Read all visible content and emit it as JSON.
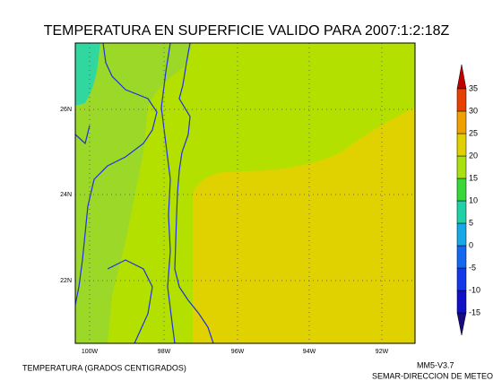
{
  "header": {
    "title": "TEMPERATURA EN SUPERFICIE VALIDO PARA 2007:1:2:18Z"
  },
  "map": {
    "lat_labels": [
      "26N",
      "24N",
      "22N"
    ],
    "lon_labels": [
      "100W",
      "98W",
      "96W",
      "94W",
      "92W"
    ]
  },
  "colorbar": {
    "levels": [
      -15,
      -10,
      -5,
      0,
      5,
      10,
      15,
      20,
      25,
      30,
      35
    ],
    "colors": [
      "#1a0a80",
      "#1010c8",
      "#1238e8",
      "#1468f0",
      "#18a8e8",
      "#20d0a8",
      "#38d838",
      "#a8e010",
      "#e0d000",
      "#f0a000",
      "#e84000",
      "#c00000"
    ]
  },
  "footer": {
    "left": "TEMPERATURA (GRADOS CENTIGRADOS)",
    "right_top": "MM5-V3.7",
    "right_bottom": "SEMAR-DIRECCION DE METEO"
  }
}
